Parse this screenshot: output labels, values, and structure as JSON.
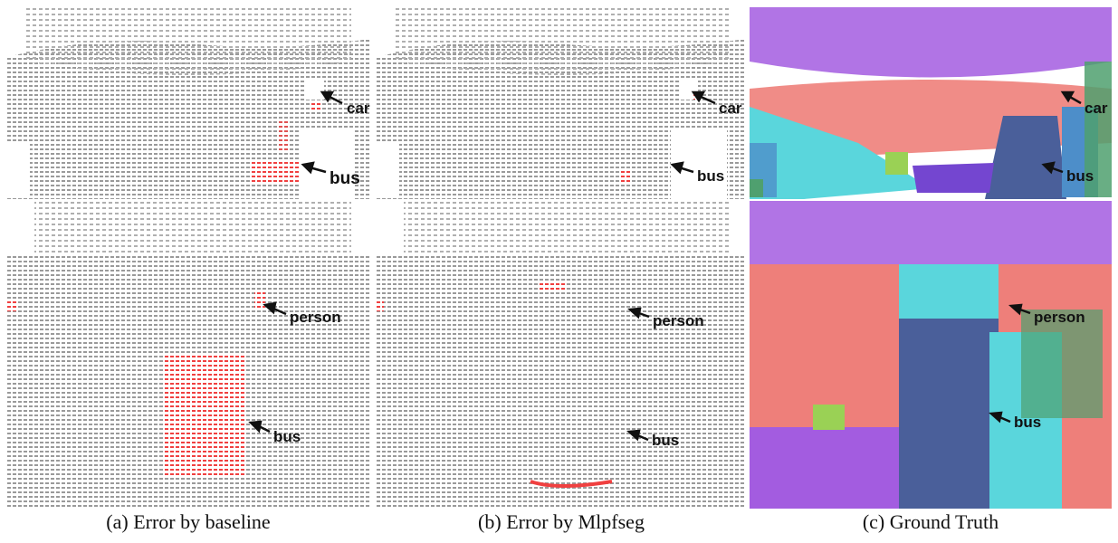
{
  "captions": {
    "a": "(a) Error by baseline",
    "b": "(b) Error by Mlpfseg",
    "c": "(c) Ground Truth"
  },
  "labels": {
    "car": "car",
    "bus": "bus",
    "person": "person"
  },
  "colors": {
    "point_gray": "#9a9a9a",
    "error_red": "#f04040",
    "gt_purple": "#a35ce0",
    "gt_salmon": "#ee7f7a",
    "gt_cyan": "#5ad6dc",
    "gt_navy": "#4a5f9a",
    "gt_violet": "#7446d0",
    "gt_green": "#4fa06f",
    "gt_lime": "#9ad155",
    "gt_blue": "#4d8ec9"
  }
}
